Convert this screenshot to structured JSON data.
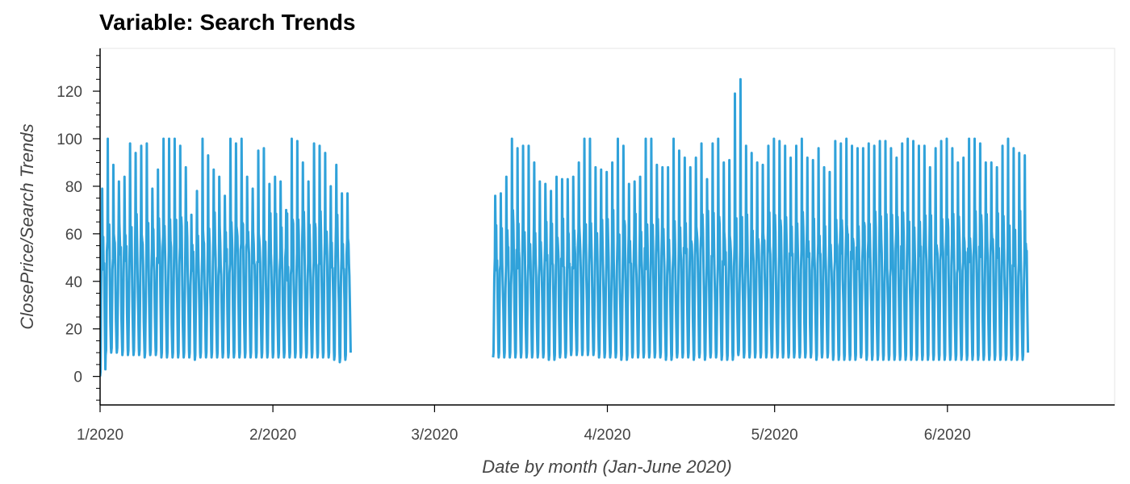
{
  "chart_data": {
    "type": "line",
    "title": "Variable: Search Trends",
    "xlabel": "Date by month (Jan-June 2020)",
    "ylabel": "ClosePrice/Search Trends",
    "ylim": [
      -12,
      138
    ],
    "y_ticks": [
      0,
      20,
      40,
      60,
      80,
      100,
      120
    ],
    "x_ticks": [
      {
        "label": "1/2020",
        "day": 0
      },
      {
        "label": "2/2020",
        "day": 31
      },
      {
        "label": "3/2020",
        "day": 60
      },
      {
        "label": "4/2020",
        "day": 91
      },
      {
        "label": "5/2020",
        "day": 121
      },
      {
        "label": "6/2020",
        "day": 152
      }
    ],
    "x_range_days": [
      0,
      182
    ],
    "series": [
      {
        "name": "Search Trends",
        "color": "#30a2da",
        "resolution": "hourly, daily cycles",
        "segments": [
          {
            "start_day": 0.0,
            "daily_peaks": [
              79,
              100,
              89,
              82,
              84,
              98,
              94,
              97,
              98,
              79,
              87,
              100,
              100,
              100,
              97,
              88,
              68,
              78,
              100,
              93,
              87,
              84,
              76,
              100,
              98,
              100,
              84,
              79,
              95,
              96,
              81,
              84,
              82,
              70,
              100,
              99,
              90,
              82,
              98,
              97,
              94,
              80,
              89,
              77,
              77
            ],
            "daily_troughs": [
              0,
              9,
              10,
              10,
              9,
              9,
              9,
              9,
              8,
              9,
              9,
              8,
              8,
              8,
              8,
              8,
              8,
              7,
              8,
              8,
              8,
              8,
              8,
              8,
              8,
              8,
              8,
              8,
              8,
              8,
              8,
              8,
              8,
              8,
              8,
              8,
              8,
              8,
              8,
              8,
              8,
              8,
              7,
              6,
              7
            ]
          },
          {
            "start_day": 70.5,
            "daily_peaks": [
              76,
              77,
              84,
              100,
              96,
              97,
              97,
              90,
              82,
              81,
              78,
              84,
              83,
              83,
              84,
              90,
              100,
              100,
              88,
              87,
              86,
              90,
              100,
              97,
              81,
              82,
              84,
              100,
              100,
              89,
              88,
              88,
              100,
              95,
              92,
              88,
              92,
              98,
              83,
              98,
              100,
              90,
              91,
              119,
              125,
              97,
              94,
              90,
              89,
              97,
              100,
              99,
              97,
              92,
              97,
              100,
              92,
              91,
              96,
              88,
              86,
              99,
              98,
              100,
              97,
              96,
              96,
              98,
              97,
              99,
              99,
              96,
              92,
              98,
              100,
              99,
              97,
              97,
              88,
              96,
              99,
              100,
              96,
              90,
              92,
              100,
              100,
              98,
              90,
              90,
              88,
              97,
              100,
              96,
              94,
              93
            ],
            "daily_troughs": [
              8,
              8,
              8,
              8,
              8,
              8,
              8,
              8,
              8,
              8,
              7,
              7,
              8,
              8,
              9,
              9,
              9,
              9,
              9,
              8,
              8,
              8,
              8,
              7,
              7,
              8,
              8,
              8,
              8,
              8,
              8,
              7,
              7,
              8,
              8,
              8,
              7,
              8,
              7,
              8,
              8,
              7,
              7,
              7,
              9,
              8,
              8,
              8,
              8,
              8,
              8,
              8,
              8,
              8,
              8,
              8,
              8,
              8,
              7,
              8,
              8,
              7,
              7,
              7,
              7,
              7,
              8,
              7,
              7,
              7,
              7,
              7,
              7,
              7,
              7,
              7,
              7,
              7,
              7,
              7,
              7,
              7,
              7,
              7,
              7,
              7,
              7,
              7,
              7,
              7,
              7,
              7,
              7,
              7,
              7,
              7
            ]
          }
        ]
      }
    ]
  }
}
